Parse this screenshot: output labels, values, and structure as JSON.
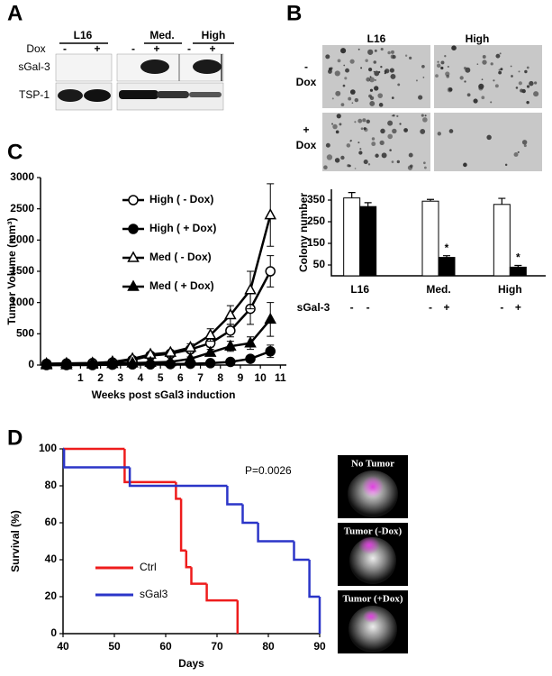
{
  "panel_labels": [
    "A",
    "B",
    "C",
    "D"
  ],
  "blot": {
    "groups": [
      "L16",
      "Med.",
      "High"
    ],
    "dox_label": "Dox",
    "dox_signs": [
      "-",
      "+",
      "-",
      "+",
      "-",
      "+"
    ],
    "rows": [
      "sGal-3",
      "TSP-1"
    ]
  },
  "micrographs": {
    "columns": [
      "L16",
      "High"
    ],
    "rows": [
      [
        "-",
        "Dox"
      ],
      [
        "+",
        "Dox"
      ]
    ]
  },
  "chart_data": [
    {
      "type": "bar",
      "ylabel": "Colony number",
      "categories": [
        "L16",
        "Med.",
        "High"
      ],
      "ylim": [
        0,
        400
      ],
      "yticks": [
        50,
        150,
        250,
        350
      ],
      "series": [
        {
          "color": "#ffffff",
          "values": [
            360,
            345,
            330
          ],
          "errors": [
            25,
            8,
            28
          ]
        },
        {
          "color": "#000000",
          "values": [
            320,
            85,
            40
          ],
          "errors": [
            18,
            8,
            8
          ]
        }
      ],
      "annotations": [
        "*",
        "*"
      ],
      "row_label": "sGal-3",
      "row_signs": [
        "-",
        "-",
        "-",
        "+",
        "-",
        "+"
      ]
    },
    {
      "type": "line",
      "ylabel": "Tumor Volume (mm³)",
      "xlabel": "Weeks post sGal3 induction",
      "xlim": [
        -1,
        11.3
      ],
      "xticks": [
        1,
        2,
        3,
        4,
        5,
        6,
        7,
        8,
        9,
        10,
        11
      ],
      "ylim": [
        0,
        3000
      ],
      "yticks": [
        0,
        500,
        1000,
        1500,
        2000,
        2500,
        3000
      ],
      "x": [
        -0.7,
        0.3,
        1.6,
        2.6,
        3.6,
        4.5,
        5.5,
        6.5,
        7.5,
        8.5,
        9.5,
        10.5
      ],
      "series": [
        {
          "name": "High ( - Dox)",
          "color": "#000000",
          "marker": "circle",
          "filled": false,
          "values": [
            20,
            25,
            30,
            40,
            80,
            150,
            180,
            250,
            350,
            550,
            900,
            1500
          ],
          "errors": [
            null,
            null,
            null,
            null,
            20,
            30,
            30,
            40,
            60,
            100,
            250,
            250
          ]
        },
        {
          "name": "High ( + Dox)",
          "color": "#000000",
          "marker": "circle",
          "filled": true,
          "values": [
            0,
            0,
            0,
            5,
            10,
            10,
            15,
            20,
            30,
            50,
            100,
            220
          ],
          "errors": [
            null,
            null,
            null,
            null,
            null,
            null,
            null,
            10,
            15,
            20,
            30,
            100
          ]
        },
        {
          "name": "Med ( - Dox)",
          "color": "#000000",
          "marker": "triangle",
          "filled": false,
          "values": [
            20,
            25,
            30,
            50,
            100,
            170,
            200,
            280,
            480,
            800,
            1200,
            2400
          ],
          "errors": [
            null,
            null,
            null,
            null,
            20,
            30,
            30,
            60,
            100,
            150,
            300,
            500
          ]
        },
        {
          "name": "Med ( + Dox)",
          "color": "#000000",
          "marker": "triangle",
          "filled": true,
          "values": [
            0,
            0,
            10,
            20,
            30,
            40,
            50,
            100,
            200,
            300,
            350,
            730
          ],
          "errors": [
            null,
            null,
            null,
            null,
            null,
            null,
            null,
            30,
            50,
            80,
            100,
            270
          ]
        }
      ]
    },
    {
      "type": "step",
      "ylabel": "Survival (%)",
      "xlabel": "Days",
      "xlim": [
        40,
        90
      ],
      "xticks": [
        40,
        50,
        60,
        70,
        80,
        90
      ],
      "ylim": [
        0,
        100
      ],
      "yticks": [
        0,
        20,
        40,
        60,
        80,
        100
      ],
      "annotation": "P=0.0026",
      "series": [
        {
          "name": "Ctrl",
          "color": "#ee1c1c",
          "x": [
            40,
            52,
            62,
            63,
            64,
            65,
            68,
            74
          ],
          "values": [
            100,
            82,
            73,
            45,
            36,
            27,
            18,
            0
          ]
        },
        {
          "name": "sGal3",
          "color": "#2b35c8",
          "x": [
            40,
            40.2,
            53,
            72,
            75,
            78,
            85,
            88,
            90
          ],
          "values": [
            100,
            90,
            80,
            70,
            60,
            50,
            40,
            20,
            0
          ]
        }
      ]
    }
  ],
  "images": [
    "No Tumor",
    "Tumor (-Dox)",
    "Tumor (+Dox)"
  ]
}
